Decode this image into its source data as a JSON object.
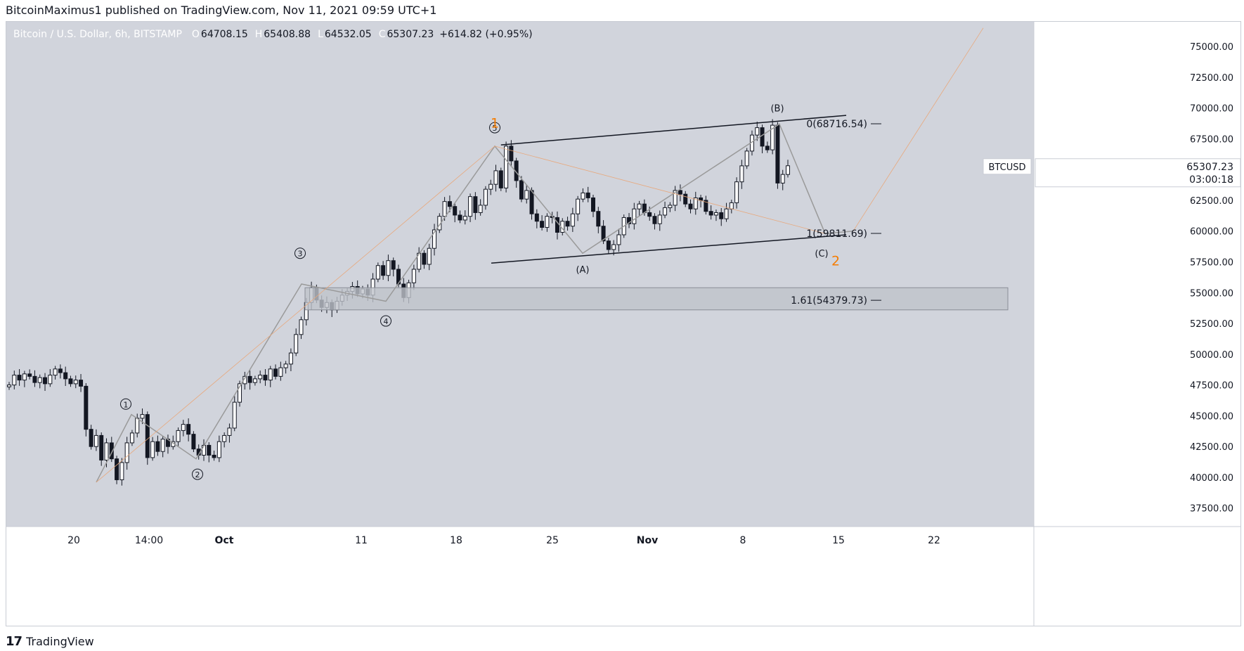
{
  "header": {
    "publisher": "BitcoinMaximus1 published on TradingView.com, Nov 11, 2021 09:59 UTC+1"
  },
  "footer": {
    "brand": "TradingView",
    "logo": "17"
  },
  "colors": {
    "background": "#d1d4dc",
    "axis_bg": "#ffffff",
    "candle": "#131722",
    "fib_orange": "#f57c00",
    "wave_gray": "#9a9a9a",
    "zone": "#bfc3cb"
  },
  "legend": {
    "symbol": "Bitcoin / U.S. Dollar, 6h, BITSTAMP",
    "o_label": "O",
    "o": "64708.15",
    "h_label": "H",
    "h": "65408.88",
    "l_label": "L",
    "l": "64532.05",
    "c_label": "C",
    "c": "65307.23",
    "change": "+614.82 (+0.95%)"
  },
  "price_tag": {
    "ticker": "BTCUSD",
    "price": "65307.23",
    "countdown": "03:00:18"
  },
  "chart_data": {
    "type": "candlestick",
    "currency": "USD",
    "ylim": [
      36000,
      77000
    ],
    "y_ticks": [
      "75000.00",
      "72500.00",
      "70000.00",
      "67500.00",
      "65000.00",
      "62500.00",
      "60000.00",
      "57500.00",
      "55000.00",
      "52500.00",
      "50000.00",
      "47500.00",
      "45000.00",
      "42500.00",
      "40000.00",
      "37500.00"
    ],
    "x_ticks": [
      "20",
      "14:00",
      "Oct",
      "11",
      "18",
      "25",
      "Nov",
      "8",
      "15",
      "22"
    ],
    "x_ticks_bold": [
      false,
      false,
      true,
      false,
      false,
      false,
      true,
      false,
      false,
      false
    ],
    "closes": [
      47500,
      48300,
      47900,
      48400,
      48200,
      47700,
      48100,
      47600,
      48300,
      48800,
      48500,
      48000,
      47600,
      47900,
      47400,
      43900,
      42500,
      43400,
      41400,
      42800,
      41500,
      39800,
      41200,
      42800,
      43600,
      44800,
      45100,
      41600,
      42900,
      42100,
      43100,
      42500,
      42900,
      43800,
      44300,
      43500,
      42300,
      41800,
      42600,
      41800,
      41600,
      42900,
      43400,
      44000,
      46100,
      47600,
      48200,
      47700,
      48000,
      48300,
      47900,
      48800,
      48200,
      48900,
      49200,
      50100,
      51600,
      52800,
      54200,
      55400,
      54400,
      53800,
      54200,
      53600,
      54300,
      54800,
      55100,
      55500,
      54900,
      55300,
      54800,
      56100,
      57200,
      56400,
      57600,
      56900,
      55700,
      54600,
      55800,
      56900,
      58200,
      57300,
      58600,
      60100,
      61200,
      62400,
      62000,
      61300,
      60900,
      61200,
      62800,
      61500,
      62100,
      63400,
      63800,
      64900,
      63500,
      66900,
      65700,
      64100,
      62600,
      63300,
      61400,
      60800,
      60300,
      61200,
      61100,
      59900,
      60800,
      60400,
      61400,
      62600,
      63100,
      62700,
      61600,
      60400,
      59200,
      58500,
      58900,
      59700,
      61100,
      60600,
      61800,
      62200,
      61500,
      61200,
      60600,
      61300,
      61900,
      62100,
      63300,
      63000,
      62200,
      61800,
      62700,
      62500,
      61600,
      61300,
      61500,
      61000,
      61800,
      62300,
      64000,
      65300,
      66500,
      67800,
      68400,
      66900,
      66600,
      68600,
      63900,
      64600,
      65307
    ],
    "annotations": {
      "impulse_labels": [
        "1",
        "2",
        "3",
        "4",
        "5"
      ],
      "correction_labels": [
        "(A)",
        "(B)",
        "(C)"
      ],
      "wave_labels": [
        "1",
        "2"
      ],
      "fib_levels": [
        {
          "label": "0(68716.54)",
          "value": 68716.54
        },
        {
          "label": "1(59811.69)",
          "value": 59811.69
        },
        {
          "label": "1.61(54379.73)",
          "value": 54379.73
        }
      ],
      "support_zone": [
        53600,
        55400
      ]
    }
  }
}
